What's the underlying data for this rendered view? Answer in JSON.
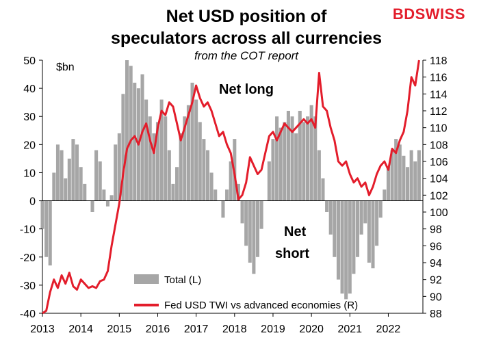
{
  "chart_data": {
    "type": "area",
    "title_line1": "Net USD position of",
    "title_line2": "speculators across all currencies",
    "subtitle": "from the COT report",
    "brand": "BDSWISS",
    "left_unit": "$bn",
    "ylim_left": [
      -40,
      50
    ],
    "ylim_right": [
      88,
      118
    ],
    "x_range": [
      2013.0,
      2022.9
    ],
    "left_ticks": [
      50,
      40,
      30,
      20,
      10,
      0,
      -10,
      -20,
      -30,
      -40
    ],
    "right_ticks": [
      118,
      116,
      114,
      112,
      110,
      108,
      106,
      104,
      102,
      100,
      98,
      96,
      94,
      92,
      90,
      88
    ],
    "x_ticks": [
      "2013",
      "2014",
      "2015",
      "2016",
      "2017",
      "2018",
      "2019",
      "2020",
      "2021",
      "2022"
    ],
    "annotations": {
      "net_long": "Net long",
      "net_short_1": "Net",
      "net_short_2": "short"
    },
    "series": [
      {
        "name": "Total (L)",
        "color": "#a6a6a6",
        "axis": "left",
        "x": [
          2013.0,
          2013.1,
          2013.2,
          2013.3,
          2013.4,
          2013.5,
          2013.6,
          2013.7,
          2013.8,
          2013.9,
          2014.0,
          2014.1,
          2014.2,
          2014.3,
          2014.4,
          2014.5,
          2014.6,
          2014.7,
          2014.8,
          2014.9,
          2015.0,
          2015.1,
          2015.2,
          2015.3,
          2015.4,
          2015.5,
          2015.6,
          2015.7,
          2015.8,
          2015.9,
          2016.0,
          2016.1,
          2016.2,
          2016.3,
          2016.4,
          2016.5,
          2016.6,
          2016.7,
          2016.8,
          2016.9,
          2017.0,
          2017.1,
          2017.2,
          2017.3,
          2017.4,
          2017.5,
          2017.6,
          2017.7,
          2017.8,
          2017.9,
          2018.0,
          2018.1,
          2018.2,
          2018.3,
          2018.4,
          2018.5,
          2018.6,
          2018.7,
          2018.8,
          2018.9,
          2019.0,
          2019.1,
          2019.2,
          2019.3,
          2019.4,
          2019.5,
          2019.6,
          2019.7,
          2019.8,
          2019.9,
          2020.0,
          2020.1,
          2020.2,
          2020.3,
          2020.4,
          2020.5,
          2020.6,
          2020.7,
          2020.8,
          2020.9,
          2021.0,
          2021.1,
          2021.2,
          2021.3,
          2021.4,
          2021.5,
          2021.6,
          2021.7,
          2021.8,
          2021.9,
          2022.0,
          2022.1,
          2022.2,
          2022.3,
          2022.4,
          2022.5,
          2022.6,
          2022.7,
          2022.8
        ],
        "values": [
          -10,
          -20,
          -23,
          10,
          20,
          18,
          8,
          15,
          22,
          20,
          12,
          6,
          0,
          -4,
          18,
          14,
          4,
          -2,
          2,
          20,
          24,
          38,
          50,
          48,
          42,
          40,
          45,
          36,
          30,
          24,
          28,
          36,
          30,
          18,
          6,
          12,
          24,
          30,
          34,
          42,
          36,
          28,
          22,
          18,
          10,
          4,
          0,
          -6,
          4,
          14,
          22,
          6,
          -8,
          -16,
          -22,
          -26,
          -20,
          -10,
          0,
          14,
          22,
          30,
          26,
          28,
          32,
          30,
          24,
          32,
          28,
          30,
          34,
          30,
          18,
          8,
          -4,
          -12,
          -20,
          -28,
          -33,
          -35,
          -33,
          -26,
          -20,
          -12,
          -8,
          -22,
          -24,
          -16,
          -6,
          4,
          12,
          18,
          22,
          20,
          16,
          12,
          18,
          14,
          18
        ]
      },
      {
        "name": "Fed USD TWI vs advanced economies (R)",
        "color": "#e31d2b",
        "axis": "right",
        "x": [
          2013.0,
          2013.1,
          2013.2,
          2013.3,
          2013.4,
          2013.5,
          2013.6,
          2013.7,
          2013.8,
          2013.9,
          2014.0,
          2014.1,
          2014.2,
          2014.3,
          2014.4,
          2014.5,
          2014.6,
          2014.7,
          2014.8,
          2014.9,
          2015.0,
          2015.1,
          2015.2,
          2015.3,
          2015.4,
          2015.5,
          2015.6,
          2015.7,
          2015.8,
          2015.9,
          2016.0,
          2016.1,
          2016.2,
          2016.3,
          2016.4,
          2016.5,
          2016.6,
          2016.7,
          2016.8,
          2016.9,
          2017.0,
          2017.1,
          2017.2,
          2017.3,
          2017.4,
          2017.5,
          2017.6,
          2017.7,
          2017.8,
          2017.9,
          2018.0,
          2018.1,
          2018.2,
          2018.3,
          2018.4,
          2018.5,
          2018.6,
          2018.7,
          2018.8,
          2018.9,
          2019.0,
          2019.1,
          2019.2,
          2019.3,
          2019.4,
          2019.5,
          2019.6,
          2019.7,
          2019.8,
          2019.9,
          2020.0,
          2020.1,
          2020.2,
          2020.3,
          2020.4,
          2020.5,
          2020.6,
          2020.7,
          2020.8,
          2020.9,
          2021.0,
          2021.1,
          2021.2,
          2021.3,
          2021.4,
          2021.5,
          2021.6,
          2021.7,
          2021.8,
          2021.9,
          2022.0,
          2022.1,
          2022.2,
          2022.3,
          2022.4,
          2022.5,
          2022.6,
          2022.7,
          2022.8
        ],
        "values": [
          88.0,
          88.3,
          90.5,
          92.0,
          91.0,
          92.5,
          91.5,
          92.8,
          91.2,
          90.8,
          92.0,
          91.5,
          91.0,
          91.2,
          91.0,
          91.8,
          92.0,
          93.0,
          96.0,
          98.5,
          101.0,
          104.5,
          107.5,
          108.5,
          109.0,
          108.0,
          109.5,
          110.5,
          108.5,
          107.0,
          110.0,
          112.0,
          111.5,
          113.0,
          112.5,
          110.5,
          108.5,
          110.0,
          111.5,
          113.0,
          115.0,
          113.5,
          112.5,
          113.0,
          112.0,
          110.5,
          109.0,
          109.5,
          108.0,
          107.0,
          104.5,
          101.5,
          102.0,
          103.5,
          106.5,
          105.5,
          104.5,
          105.0,
          107.0,
          109.0,
          109.5,
          108.5,
          109.5,
          110.5,
          110.0,
          109.5,
          110.0,
          110.5,
          111.0,
          110.5,
          111.0,
          110.0,
          116.5,
          112.5,
          112.0,
          110.0,
          108.5,
          106.0,
          105.5,
          106.0,
          104.5,
          103.5,
          104.0,
          103.0,
          103.5,
          102.0,
          103.0,
          104.5,
          105.5,
          106.0,
          105.0,
          107.5,
          107.0,
          108.5,
          109.5,
          112.0,
          116.0,
          115.0,
          118.0
        ]
      }
    ]
  }
}
